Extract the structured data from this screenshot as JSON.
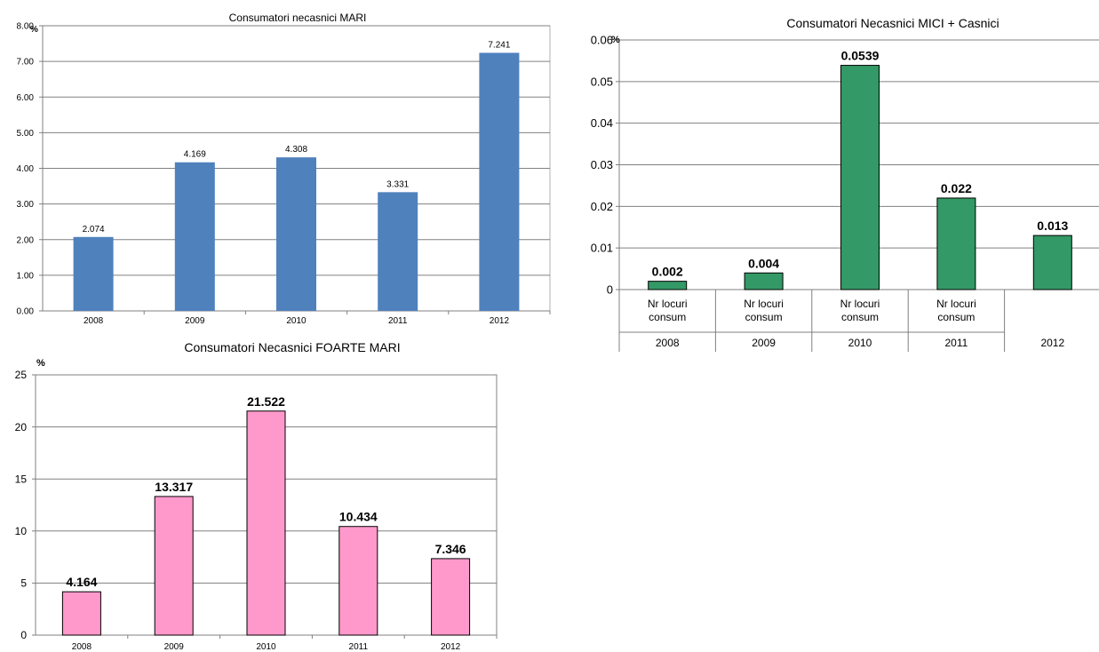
{
  "chart_data": [
    {
      "type": "bar",
      "title": "Consumatori necasnici MARI",
      "ylabel": "%",
      "categories": [
        "2008",
        "2009",
        "2010",
        "2011",
        "2012"
      ],
      "values": [
        2.074,
        4.169,
        4.308,
        3.331,
        7.241
      ],
      "value_labels": [
        "2.074",
        "4.169",
        "4.308",
        "3.331",
        "7.241"
      ],
      "yticks": [
        "0.00",
        "1.00",
        "2.00",
        "3.00",
        "4.00",
        "5.00",
        "6.00",
        "7.00",
        "8.00"
      ],
      "ylim": [
        0,
        8
      ],
      "grid": true,
      "bar_color": "#4f81bd"
    },
    {
      "type": "bar",
      "title": "Consumatori Necasnici MICI + Casnici",
      "ylabel": "%",
      "categories": [
        "2008",
        "2009",
        "2010",
        "2011",
        "2012"
      ],
      "subcategories": [
        "Nr locuri consum",
        "Nr locuri consum",
        "Nr locuri consum",
        "Nr locuri consum",
        ""
      ],
      "values": [
        0.002,
        0.004,
        0.0539,
        0.022,
        0.013
      ],
      "value_labels": [
        "0.002",
        "0.004",
        "0.0539",
        "0.022",
        "0.013"
      ],
      "yticks": [
        "0",
        "0.01",
        "0.02",
        "0.03",
        "0.04",
        "0.05",
        "0.06"
      ],
      "ylim": [
        0,
        0.06
      ],
      "grid": true,
      "bar_color": "#339966"
    },
    {
      "type": "bar",
      "title": "Consumatori Necasnici FOARTE MARI",
      "ylabel": "%",
      "categories": [
        "2008",
        "2009",
        "2010",
        "2011",
        "2012"
      ],
      "values": [
        4.164,
        13.317,
        21.522,
        10.434,
        7.346
      ],
      "value_labels": [
        "4.164",
        "13.317",
        "21.522",
        "10.434",
        "7.346"
      ],
      "yticks": [
        "0",
        "5",
        "10",
        "15",
        "20",
        "25"
      ],
      "ylim": [
        0,
        25
      ],
      "grid": true,
      "bar_color": "#ff99cc"
    }
  ]
}
